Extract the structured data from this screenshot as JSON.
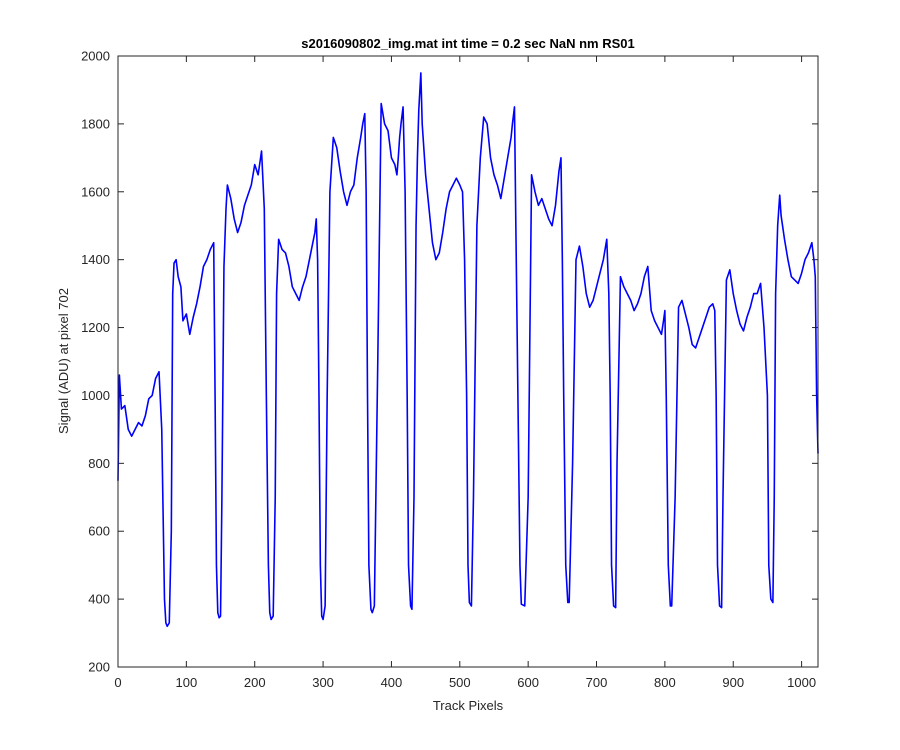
{
  "chart_data": {
    "type": "line",
    "title": "s2016090802_img.mat int time = 0.2 sec  NaN nm RS01",
    "xlabel": "Track Pixels",
    "ylabel": "Signal (ADU) at pixel 702",
    "xlim": [
      0,
      1024
    ],
    "ylim": [
      200,
      2000
    ],
    "x_ticks": [
      0,
      100,
      200,
      300,
      400,
      500,
      600,
      700,
      800,
      900,
      1000
    ],
    "y_ticks": [
      200,
      400,
      600,
      800,
      1000,
      1200,
      1400,
      1600,
      1800,
      2000
    ],
    "grid": false,
    "line_color": "#0000ff",
    "series": [
      {
        "x": [
          0,
          2,
          5,
          10,
          15,
          20,
          25,
          30,
          35,
          40,
          45,
          50,
          55,
          60,
          64,
          68,
          70,
          72,
          75,
          78,
          80,
          82,
          85,
          88,
          92,
          95,
          100,
          105,
          110,
          115,
          120,
          125,
          130,
          135,
          140,
          142,
          144,
          146,
          148,
          150,
          152,
          155,
          158,
          160,
          165,
          170,
          175,
          180,
          185,
          190,
          195,
          200,
          205,
          210,
          214,
          217,
          220,
          222,
          224,
          227,
          230,
          232,
          235,
          240,
          245,
          250,
          255,
          260,
          265,
          270,
          275,
          280,
          285,
          288,
          290,
          292,
          294,
          296,
          298,
          300,
          303,
          306,
          310,
          315,
          320,
          325,
          330,
          335,
          340,
          345,
          350,
          355,
          358,
          361,
          363,
          365,
          367,
          370,
          372,
          375,
          380,
          385,
          390,
          395,
          400,
          405,
          408,
          410,
          412,
          414,
          417,
          420,
          423,
          425,
          428,
          430,
          433,
          436,
          438,
          440,
          443,
          445,
          450,
          455,
          460,
          465,
          470,
          475,
          480,
          485,
          490,
          495,
          500,
          504,
          507,
          510,
          512,
          514,
          517,
          520,
          525,
          530,
          535,
          540,
          545,
          550,
          555,
          560,
          565,
          570,
          575,
          577,
          580,
          582,
          585,
          588,
          590,
          595,
          600,
          605,
          610,
          615,
          620,
          625,
          630,
          635,
          640,
          645,
          648,
          650,
          652,
          655,
          658,
          660,
          665,
          670,
          675,
          680,
          685,
          690,
          695,
          700,
          705,
          710,
          715,
          718,
          720,
          722,
          725,
          728,
          730,
          735,
          740,
          745,
          750,
          755,
          760,
          765,
          770,
          775,
          780,
          785,
          790,
          795,
          798,
          800,
          802,
          805,
          808,
          810,
          815,
          820,
          825,
          830,
          835,
          840,
          845,
          850,
          855,
          860,
          865,
          870,
          873,
          875,
          877,
          880,
          883,
          885,
          890,
          895,
          900,
          905,
          910,
          915,
          920,
          925,
          930,
          935,
          940,
          945,
          950,
          952,
          955,
          958,
          960,
          962,
          965,
          968,
          970,
          975,
          980,
          985,
          990,
          995,
          1000,
          1005,
          1010,
          1015,
          1018,
          1020,
          1022,
          1024
        ],
        "y": [
          750,
          1060,
          960,
          970,
          900,
          880,
          900,
          920,
          910,
          940,
          990,
          1000,
          1050,
          1070,
          900,
          400,
          330,
          320,
          330,
          600,
          1300,
          1390,
          1400,
          1350,
          1320,
          1220,
          1240,
          1180,
          1230,
          1270,
          1320,
          1380,
          1400,
          1430,
          1450,
          1000,
          500,
          360,
          345,
          350,
          700,
          1380,
          1550,
          1620,
          1580,
          1520,
          1480,
          1510,
          1560,
          1590,
          1620,
          1680,
          1650,
          1720,
          1550,
          1000,
          500,
          360,
          340,
          350,
          700,
          1300,
          1460,
          1430,
          1420,
          1380,
          1320,
          1300,
          1280,
          1320,
          1350,
          1400,
          1450,
          1480,
          1520,
          1400,
          1000,
          500,
          350,
          340,
          380,
          1000,
          1600,
          1760,
          1730,
          1660,
          1600,
          1560,
          1600,
          1620,
          1700,
          1760,
          1800,
          1830,
          1600,
          1000,
          500,
          370,
          360,
          380,
          1100,
          1860,
          1800,
          1780,
          1700,
          1680,
          1650,
          1700,
          1760,
          1800,
          1850,
          1600,
          1000,
          500,
          380,
          370,
          700,
          1500,
          1700,
          1840,
          1950,
          1800,
          1650,
          1550,
          1450,
          1400,
          1420,
          1480,
          1550,
          1600,
          1620,
          1640,
          1620,
          1600,
          1400,
          1000,
          500,
          390,
          380,
          700,
          1500,
          1700,
          1820,
          1800,
          1700,
          1650,
          1620,
          1580,
          1640,
          1700,
          1760,
          1800,
          1850,
          1500,
          1000,
          500,
          385,
          380,
          700,
          1650,
          1600,
          1560,
          1580,
          1550,
          1520,
          1500,
          1560,
          1660,
          1700,
          1400,
          1000,
          500,
          390,
          390,
          800,
          1400,
          1440,
          1380,
          1300,
          1260,
          1280,
          1320,
          1360,
          1400,
          1460,
          1300,
          1000,
          500,
          380,
          375,
          800,
          1350,
          1320,
          1300,
          1280,
          1250,
          1270,
          1300,
          1350,
          1380,
          1250,
          1220,
          1200,
          1180,
          1220,
          1250,
          1000,
          500,
          380,
          380,
          700,
          1260,
          1280,
          1240,
          1200,
          1150,
          1140,
          1170,
          1200,
          1230,
          1260,
          1270,
          1250,
          1000,
          500,
          380,
          375,
          700,
          1340,
          1370,
          1300,
          1250,
          1210,
          1190,
          1230,
          1260,
          1300,
          1300,
          1330,
          1200,
          1000,
          500,
          400,
          390,
          700,
          1300,
          1500,
          1590,
          1530,
          1460,
          1400,
          1350,
          1340,
          1330,
          1360,
          1400,
          1420,
          1450,
          1400,
          1350,
          1000,
          830
        ]
      }
    ]
  }
}
